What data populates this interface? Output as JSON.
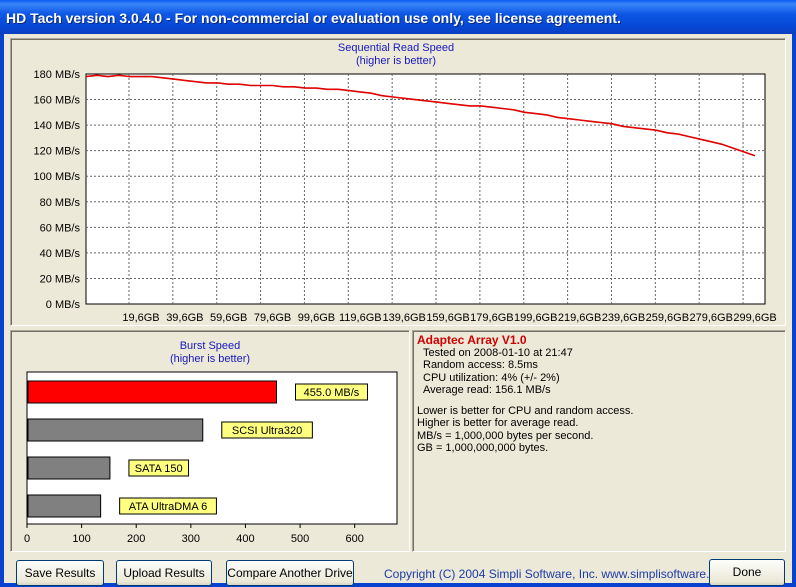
{
  "window": {
    "title": "HD Tach version 3.0.4.0  - For non-commercial or evaluation use only, see license agreement."
  },
  "read_chart": {
    "title_line1": "Sequential Read Speed",
    "title_line2": "(higher is better)"
  },
  "burst_chart": {
    "title_line1": "Burst Speed",
    "title_line2": "(higher is better)"
  },
  "chart_data": [
    {
      "type": "line",
      "title": "Sequential Read Speed",
      "subtitle": "(higher is better)",
      "y_unit": "MB/s",
      "ylim": [
        0,
        180
      ],
      "yticks": [
        "0 MB/s",
        "20 MB/s",
        "40 MB/s",
        "60 MB/s",
        "80 MB/s",
        "100 MB/s",
        "120 MB/s",
        "140 MB/s",
        "160 MB/s",
        "180 MB/s"
      ],
      "xticks": [
        "19,6GB",
        "39,6GB",
        "59,6GB",
        "79,6GB",
        "99,6GB",
        "119,6GB",
        "139,6GB",
        "159,6GB",
        "179,6GB",
        "199,6GB",
        "219,6GB",
        "239,6GB",
        "259,6GB",
        "279,6GB",
        "299,6GB"
      ],
      "xlim": [
        0,
        309.6
      ],
      "grid": true,
      "color": "#e00000",
      "series": [
        {
          "x": [
            0,
            5,
            10,
            15,
            20,
            25,
            30,
            35,
            40,
            45,
            50,
            55,
            60,
            65,
            70,
            75,
            80,
            85,
            90,
            95,
            100,
            105,
            110,
            115,
            120,
            125,
            130,
            135,
            140,
            145,
            150,
            155,
            160,
            165,
            170,
            175,
            180,
            185,
            190,
            195,
            200,
            205,
            210,
            215,
            220,
            225,
            230,
            235,
            240,
            245,
            250,
            255,
            260,
            265,
            270,
            275,
            280,
            285,
            290,
            295,
            300,
            305
          ],
          "y": [
            178,
            179,
            178,
            179,
            178,
            178,
            178,
            177,
            176,
            175,
            174,
            173,
            173,
            172,
            172,
            171,
            171,
            171,
            170,
            170,
            169,
            169,
            168,
            168,
            167,
            166,
            165,
            163,
            162,
            161,
            160,
            159,
            158,
            157,
            156,
            155,
            155,
            154,
            153,
            152,
            150,
            149,
            148,
            146,
            145,
            144,
            143,
            142,
            141,
            139,
            138,
            137,
            136,
            134,
            133,
            131,
            129,
            127,
            125,
            122,
            119,
            116
          ]
        }
      ]
    },
    {
      "type": "bar",
      "orientation": "horizontal",
      "title": "Burst Speed",
      "subtitle": "(higher is better)",
      "xlim": [
        0,
        650
      ],
      "xticks": [
        "0",
        "100",
        "200",
        "300",
        "400",
        "500",
        "600"
      ],
      "categories": [
        "455.0 MB/s",
        "SCSI Ultra320",
        "SATA 150",
        "ATA UltraDMA 6"
      ],
      "values": [
        455,
        320,
        150,
        133
      ],
      "colors": [
        "#ff0000",
        "#808080",
        "#808080",
        "#808080"
      ]
    }
  ],
  "info": {
    "heading": "Adaptec Array V1.0",
    "tested": "Tested on 2008-01-10 at 21:47",
    "random_access": "Random access: 8.5ms",
    "cpu": "CPU utilization: 4% (+/- 2%)",
    "avg_read": "Average read: 156.1 MB/s",
    "note1": "Lower is better for CPU and random access.",
    "note2": "Higher is better for average read.",
    "note3": "MB/s = 1,000,000 bytes per second.",
    "note4": "GB = 1,000,000,000 bytes."
  },
  "buttons": {
    "save": "Save Results",
    "upload": "Upload Results",
    "compare": "Compare Another Drive",
    "done": "Done"
  },
  "copyright": "Copyright (C) 2004 Simpli Software, Inc. www.simplisoftware.com"
}
